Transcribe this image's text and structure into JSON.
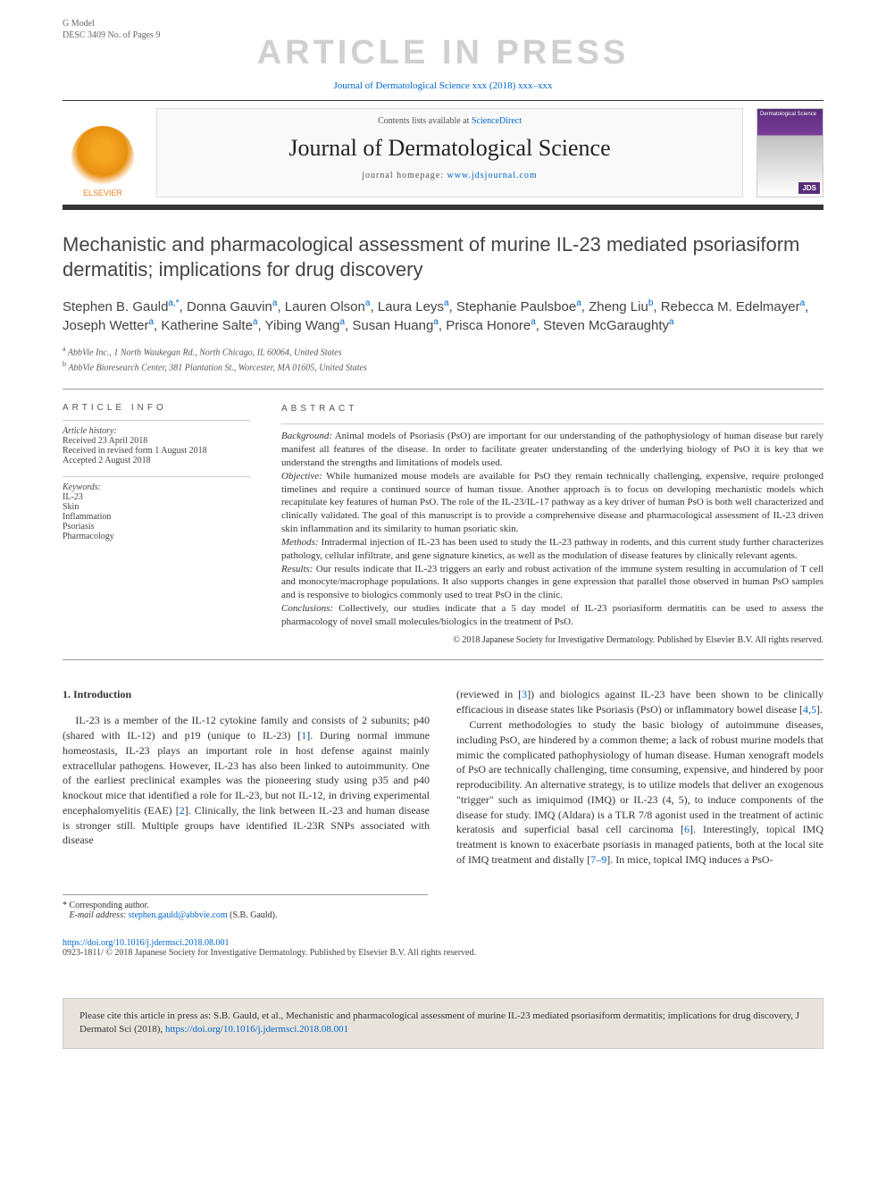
{
  "gmodel": {
    "line1": "G Model",
    "line2": "DESC 3409 No. of Pages 9"
  },
  "watermark": "ARTICLE IN PRESS",
  "journalRef": {
    "prefix": "Journal of Dermatological Science xxx (2018) xxx–xxx"
  },
  "masthead": {
    "elsevier": "ELSEVIER",
    "contents": "Contents lists available at ",
    "contentsLink": "ScienceDirect",
    "journalTitle": "Journal of Dermatological Science",
    "homepagePrefix": "journal homepage: ",
    "homepageUrl": "www.jdsjournal.com",
    "coverTitle": "Dermatological Science",
    "coverBadge": "JDS"
  },
  "title": "Mechanistic and pharmacological assessment of murine IL-23 mediated psoriasiform dermatitis; implications for drug discovery",
  "authors": [
    {
      "name": "Stephen B. Gauld",
      "aff": "a",
      "corr": true
    },
    {
      "name": "Donna Gauvin",
      "aff": "a"
    },
    {
      "name": "Lauren Olson",
      "aff": "a"
    },
    {
      "name": "Laura Leys",
      "aff": "a"
    },
    {
      "name": "Stephanie Paulsboe",
      "aff": "a"
    },
    {
      "name": "Zheng Liu",
      "aff": "b"
    },
    {
      "name": "Rebecca M. Edelmayer",
      "aff": "a"
    },
    {
      "name": "Joseph Wetter",
      "aff": "a"
    },
    {
      "name": "Katherine Salte",
      "aff": "a"
    },
    {
      "name": "Yibing Wang",
      "aff": "a"
    },
    {
      "name": "Susan Huang",
      "aff": "a"
    },
    {
      "name": "Prisca Honore",
      "aff": "a"
    },
    {
      "name": "Steven McGaraughty",
      "aff": "a"
    }
  ],
  "affiliations": [
    {
      "sup": "a",
      "text": "AbbVie Inc., 1 North Waukegan Rd., North Chicago, IL 60064, United States"
    },
    {
      "sup": "b",
      "text": "AbbVie Bioresearch Center, 381 Plantation St., Worcester, MA 01605, United States"
    }
  ],
  "infoHeading": "ARTICLE INFO",
  "history": {
    "label": "Article history:",
    "received": "Received 23 April 2018",
    "revised": "Received in revised form 1 August 2018",
    "accepted": "Accepted 2 August 2018"
  },
  "keywordsLabel": "Keywords:",
  "keywords": [
    "IL-23",
    "Skin",
    "Inflammation",
    "Psoriasis",
    "Pharmacology"
  ],
  "abstractHeading": "ABSTRACT",
  "abstract": {
    "background": {
      "label": "Background:",
      "text": " Animal models of Psoriasis (PsO) are important for our understanding of the pathophysiology of human disease but rarely manifest all features of the disease. In order to facilitate greater understanding of the underlying biology of PsO it is key that we understand the strengths and limitations of models used."
    },
    "objective": {
      "label": "Objective:",
      "text": " While humanized mouse models are available for PsO they remain technically challenging, expensive, require prolonged timelines and require a continued source of human tissue. Another approach is to focus on developing mechanistic models which recapitulate key features of human PsO. The role of the IL-23/IL-17 pathway as a key driver of human PsO is both well characterized and clinically validated. The goal of this manuscript is to provide a comprehensive disease and pharmacological assessment of IL-23 driven skin inflammation and its similarity to human psoriatic skin."
    },
    "methods": {
      "label": "Methods:",
      "text": " Intradermal injection of IL-23 has been used to study the IL-23 pathway in rodents, and this current study further characterizes pathology, cellular infiltrate, and gene signature kinetics, as well as the modulation of disease features by clinically relevant agents."
    },
    "results": {
      "label": "Results:",
      "text": " Our results indicate that IL-23 triggers an early and robust activation of the immune system resulting in accumulation of T cell and monocyte/macrophage populations. It also supports changes in gene expression that parallel those observed in human PsO samples and is responsive to biologics commonly used to treat PsO in the clinic."
    },
    "conclusions": {
      "label": "Conclusions:",
      "text": " Collectively, our studies indicate that a 5 day model of IL-23 psoriasiform dermatitis can be used to assess the pharmacology of novel small molecules/biologics in the treatment of PsO."
    },
    "copyright": "© 2018 Japanese Society for Investigative Dermatology. Published by Elsevier B.V. All rights reserved."
  },
  "intro": {
    "heading": "1. Introduction",
    "col1": "IL-23 is a member of the IL-12 cytokine family and consists of 2 subunits; p40 (shared with IL-12) and p19 (unique to IL-23) [1]. During normal immune homeostasis, IL-23 plays an important role in host defense against mainly extracellular pathogens. However, IL-23 has also been linked to autoimmunity. One of the earliest preclinical examples was the pioneering study using p35 and p40 knockout mice that identified a role for IL-23, but not IL-12, in driving experimental encephalomyelitis (EAE) [2]. Clinically, the link between IL-23 and human disease is stronger still. Multiple groups have identified IL-23R SNPs associated with disease",
    "col2a": "(reviewed in [3]) and biologics against IL-23 have been shown to be clinically efficacious in disease states like Psoriasis (PsO) or inflammatory bowel disease [4,5].",
    "col2b": "Current methodologies to study the basic biology of autoimmune diseases, including PsO, are hindered by a common theme; a lack of robust murine models that mimic the complicated pathophysiology of human disease. Human xenograft models of PsO are technically challenging, time consuming, expensive, and hindered by poor reproducibility. An alternative strategy, is to utilize models that deliver an exogenous \"trigger\" such as imiquimod (IMQ) or IL-23 (4, 5), to induce components of the disease for study. IMQ (Aldara) is a TLR 7/8 agonist used in the treatment of actinic keratosis and superficial basal cell carcinoma [6]. Interestingly, topical IMQ treatment is known to exacerbate psoriasis in managed patients, both at the local site of IMQ treatment and distally [7–9]. In mice, topical IMQ induces a PsO-",
    "refs": {
      "r1": "1",
      "r2": "2",
      "r3": "3",
      "r45": "4,5",
      "r6": "6",
      "r79": "7–9"
    }
  },
  "corresponding": {
    "star": "*",
    "label": "Corresponding author.",
    "emailLabel": "E-mail address:",
    "email": "stephen.gauld@abbvie.com",
    "name": "(S.B. Gauld)."
  },
  "footer": {
    "doi": "https://doi.org/10.1016/j.jdermsci.2018.08.001",
    "issn": "0923-1811/ © 2018 Japanese Society for Investigative Dermatology. Published by Elsevier B.V. All rights reserved."
  },
  "citation": {
    "prefix": "Please cite this article in press as: S.B. Gauld, et al., Mechanistic and pharmacological assessment of murine IL-23 mediated psoriasiform dermatitis; implications for drug discovery, J Dermatol Sci (2018), ",
    "doi": "https://doi.org/10.1016/j.jdermsci.2018.08.001"
  },
  "colors": {
    "link": "#0066cc",
    "watermark": "#d0d0d0",
    "elsevierOrange": "#f58220",
    "coverPurple": "#5a2d7a",
    "citationBg": "#e8e4dc"
  }
}
